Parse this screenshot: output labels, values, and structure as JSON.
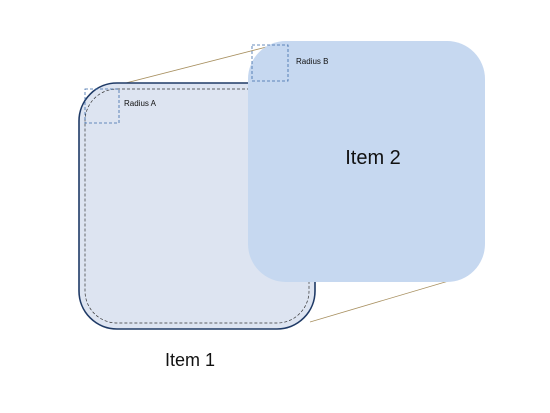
{
  "items": {
    "item1": {
      "label": "Item 1",
      "radius_label": "Radius A"
    },
    "item2": {
      "label": "Item 2",
      "radius_label": "Radius B"
    }
  },
  "colors": {
    "item1_fill": "#dde4f1",
    "item1_border": "#1f3a66",
    "item2_fill": "#c6d8f0",
    "connector": "#a89060",
    "radius_guide": "#3a6aa8"
  }
}
